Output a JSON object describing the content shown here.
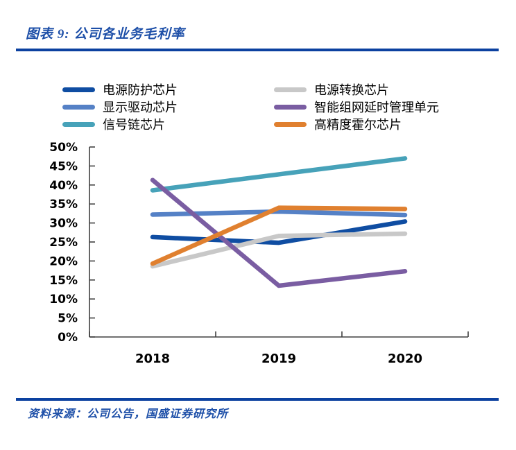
{
  "header": {
    "title": "图表 9: 公司各业务毛利率"
  },
  "footer": {
    "source": "资料来源：公司公告，国盛证券研究所"
  },
  "colors": {
    "accent_text": "#1D4FA8",
    "accent_rule": "#0C41A0",
    "axis": "#404040",
    "tick_label": "#000000"
  },
  "chart_data": {
    "type": "line",
    "title": "公司各业务毛利率",
    "categories": [
      "2018",
      "2019",
      "2020"
    ],
    "series": [
      {
        "name": "电源防护芯片",
        "color": "#0F4DA2",
        "values": [
          26.3,
          24.8,
          30.4
        ]
      },
      {
        "name": "电源转换芯片",
        "color": "#C8C8C8",
        "values": [
          18.6,
          26.6,
          27.2
        ]
      },
      {
        "name": "显示驱动芯片",
        "color": "#5581C6",
        "values": [
          32.2,
          33.0,
          32.1
        ]
      },
      {
        "name": "智能组网延时管理单元",
        "color": "#7A5DA2",
        "values": [
          41.3,
          13.5,
          17.3
        ]
      },
      {
        "name": "信号链芯片",
        "color": "#47A2B9",
        "values": [
          38.6,
          42.8,
          47.0
        ]
      },
      {
        "name": "高精度霍尔芯片",
        "color": "#E0802F",
        "values": [
          19.3,
          34.0,
          33.7
        ]
      }
    ],
    "ylim": [
      0,
      50
    ],
    "ytick_step": 5,
    "ytick_suffix": "%",
    "legend_position": "top",
    "grid": false
  }
}
